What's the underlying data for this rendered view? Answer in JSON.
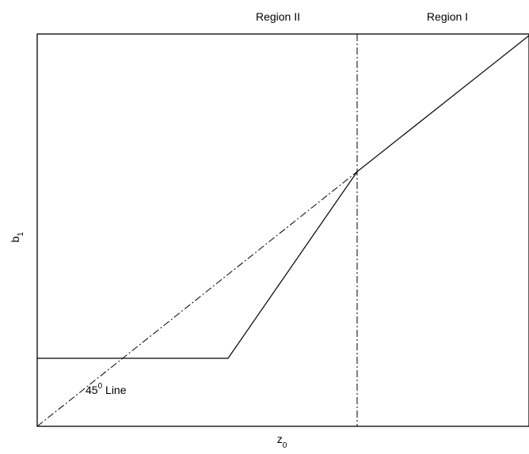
{
  "labels": {
    "region_ii": "Region II",
    "region_i": "Region I",
    "y_axis_main": "b",
    "y_axis_sub": "1",
    "x_axis_main": "z",
    "x_axis_sub": "0",
    "annotation_num": "45",
    "annotation_sup": "0",
    "annotation_text": " Line"
  }
}
